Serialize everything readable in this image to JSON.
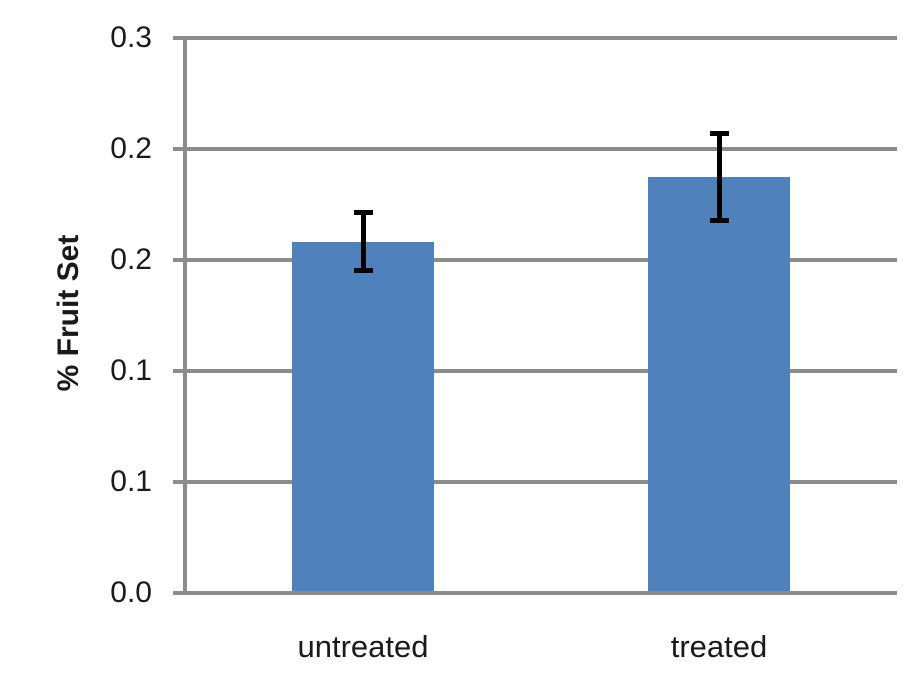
{
  "chart_data": {
    "type": "bar",
    "title": "",
    "xlabel": "",
    "ylabel": "% Fruit Set",
    "categories": [
      "untreated",
      "treated"
    ],
    "values": [
      0.19,
      0.225
    ],
    "error_bars": [
      0.017,
      0.025
    ],
    "ylim": [
      0,
      0.3
    ],
    "ytick_interval": 0.06,
    "yticks": [
      {
        "value": 0.3,
        "label": "0.3"
      },
      {
        "value": 0.24,
        "label": "0.2"
      },
      {
        "value": 0.18,
        "label": "0.2"
      },
      {
        "value": 0.12,
        "label": "0.1"
      },
      {
        "value": 0.06,
        "label": "0.1"
      },
      {
        "value": 0.0,
        "label": "0.0"
      }
    ],
    "grid": true,
    "legend": false,
    "colors": {
      "bar_fill": "#4F81BD",
      "axis_and_grid": "#8C8C8C",
      "error_bar": "#000000",
      "text": "#1A1A1A",
      "background": "#FFFFFF"
    }
  }
}
